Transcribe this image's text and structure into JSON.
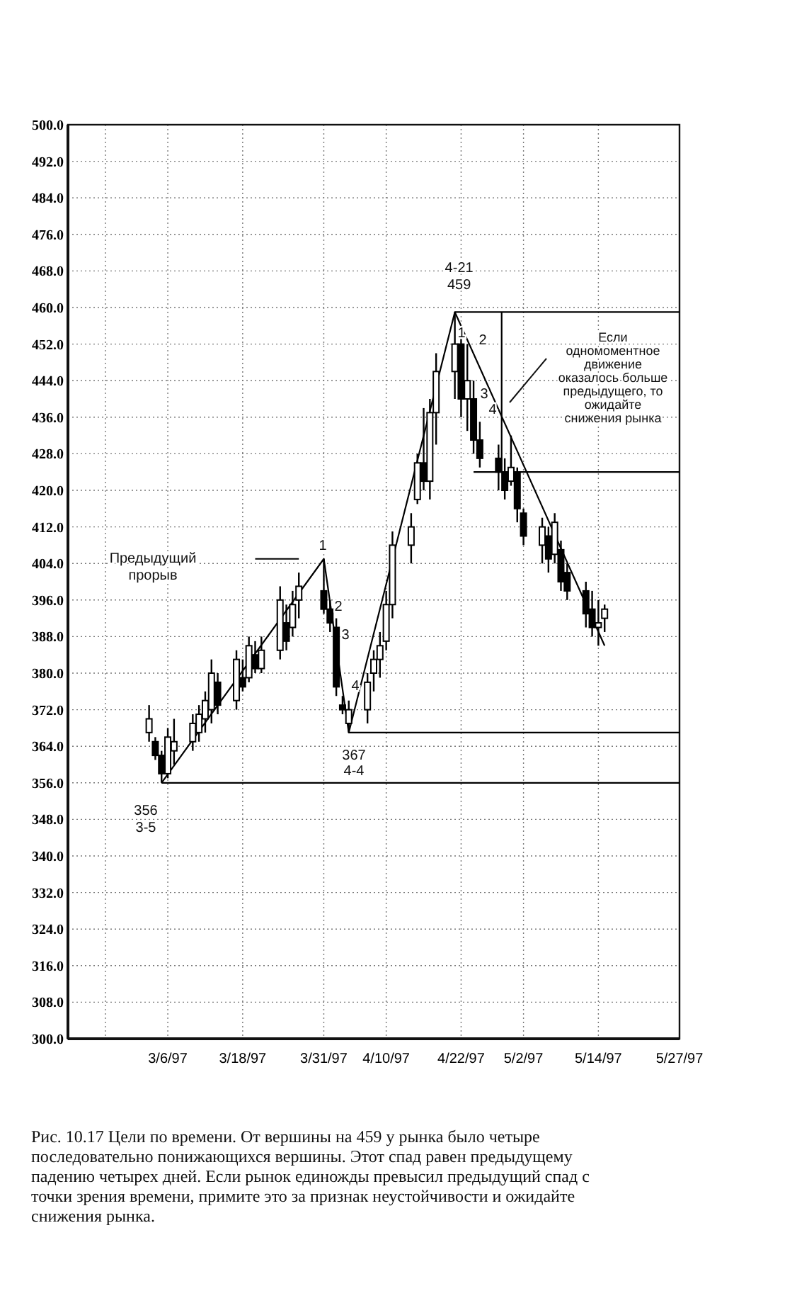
{
  "chart_data": {
    "type": "candlestick",
    "color": "#000000",
    "x": [
      "1997-03-03",
      "1997-03-04",
      "1997-03-05",
      "1997-03-06",
      "1997-03-07",
      "1997-03-10",
      "1997-03-11",
      "1997-03-12",
      "1997-03-13",
      "1997-03-14",
      "1997-03-17",
      "1997-03-18",
      "1997-03-19",
      "1997-03-20",
      "1997-03-21",
      "1997-03-24",
      "1997-03-25",
      "1997-03-26",
      "1997-03-27",
      "1997-03-31",
      "1997-04-01",
      "1997-04-02",
      "1997-04-03",
      "1997-04-04",
      "1997-04-07",
      "1997-04-08",
      "1997-04-09",
      "1997-04-10",
      "1997-04-11",
      "1997-04-14",
      "1997-04-15",
      "1997-04-16",
      "1997-04-17",
      "1997-04-18",
      "1997-04-21",
      "1997-04-22",
      "1997-04-23",
      "1997-04-24",
      "1997-04-25",
      "1997-04-28",
      "1997-04-29",
      "1997-04-30",
      "1997-05-01",
      "1997-05-02",
      "1997-05-05",
      "1997-05-06",
      "1997-05-07",
      "1997-05-08",
      "1997-05-09",
      "1997-05-12",
      "1997-05-13",
      "1997-05-14",
      "1997-05-15"
    ],
    "ohlc": [
      [
        367,
        373,
        365,
        370
      ],
      [
        365,
        366,
        361,
        362
      ],
      [
        362,
        363,
        356,
        358
      ],
      [
        358,
        368,
        357,
        366
      ],
      [
        363,
        370,
        360,
        365
      ],
      [
        365,
        371,
        363,
        369
      ],
      [
        367,
        373,
        365,
        371
      ],
      [
        370,
        376,
        367,
        374
      ],
      [
        372,
        383,
        369,
        380
      ],
      [
        378,
        380,
        371,
        373
      ],
      [
        374,
        385,
        372,
        383
      ],
      [
        379,
        383,
        376,
        377
      ],
      [
        379,
        388,
        378,
        386
      ],
      [
        384,
        387,
        380,
        381
      ],
      [
        381,
        388,
        380,
        385
      ],
      [
        385,
        399,
        383,
        396
      ],
      [
        391,
        395,
        385,
        387
      ],
      [
        390,
        398,
        388,
        395
      ],
      [
        396,
        402,
        392,
        399
      ],
      [
        398,
        405,
        393,
        394
      ],
      [
        394,
        396,
        389,
        391
      ],
      [
        390,
        392,
        375,
        377
      ],
      [
        373,
        375,
        371,
        372
      ],
      [
        369,
        374,
        367,
        372
      ],
      [
        372,
        380,
        369,
        378
      ],
      [
        380,
        385,
        376,
        383
      ],
      [
        383,
        389,
        379,
        386
      ],
      [
        387,
        398,
        385,
        395
      ],
      [
        395,
        411,
        392,
        408
      ],
      [
        408,
        415,
        404,
        412
      ],
      [
        418,
        428,
        417,
        426
      ],
      [
        426,
        438,
        420,
        422
      ],
      [
        422,
        440,
        418,
        437
      ],
      [
        437,
        450,
        430,
        446
      ],
      [
        446,
        459,
        440,
        452
      ],
      [
        452,
        456,
        436,
        440
      ],
      [
        440,
        452,
        433,
        444
      ],
      [
        440,
        444,
        428,
        431
      ],
      [
        431,
        435,
        425,
        427
      ],
      [
        427,
        430,
        420,
        424
      ],
      [
        424,
        427,
        418,
        420
      ],
      [
        422,
        432,
        421,
        425
      ],
      [
        424,
        425,
        413,
        416
      ],
      [
        415,
        416,
        408,
        410
      ],
      [
        408,
        414,
        404,
        412
      ],
      [
        410,
        412,
        402,
        405
      ],
      [
        406,
        415,
        404,
        413
      ],
      [
        407,
        409,
        398,
        400
      ],
      [
        402,
        404,
        396,
        398
      ],
      [
        398,
        400,
        390,
        393
      ],
      [
        394,
        398,
        388,
        390
      ],
      [
        390,
        396,
        386,
        391
      ],
      [
        392,
        395,
        389,
        394
      ]
    ],
    "series": [
      {
        "type": "line",
        "color": "#000000",
        "x": [
          "1997-03-05",
          "1997-03-31",
          "1997-04-04",
          "1997-04-21",
          "1997-05-15"
        ],
        "values": [
          356,
          405,
          367,
          459,
          386
        ]
      },
      {
        "type": "line",
        "color": "#000000",
        "x": [
          "1997-03-05",
          "1997-05-27"
        ],
        "values": [
          356,
          356
        ]
      },
      {
        "type": "line",
        "color": "#000000",
        "x": [
          "1997-04-04",
          "1997-05-27"
        ],
        "values": [
          367,
          367
        ]
      },
      {
        "type": "line",
        "color": "#000000",
        "x": [
          "1997-04-21",
          "1997-05-27"
        ],
        "values": [
          459,
          459
        ]
      },
      {
        "type": "line",
        "color": "#000000",
        "x": [
          "1997-04-24",
          "1997-05-27"
        ],
        "values": [
          424,
          424
        ]
      },
      {
        "type": "line",
        "color": "#000000",
        "x": [
          "1997-04-28T12:00",
          "1997-04-28T12:00"
        ],
        "values": [
          459,
          424
        ]
      },
      {
        "type": "line",
        "color": "#000000",
        "x": [
          "1997-03-20",
          "1997-03-27"
        ],
        "values": [
          405,
          405
        ]
      }
    ],
    "xlim": [
      "1997-02-18",
      "1997-05-27"
    ],
    "xticks": [
      {
        "value": "1997-02-24",
        "label": null
      },
      {
        "value": "1997-03-06",
        "label": "3/6/97"
      },
      {
        "value": "1997-03-18",
        "label": "3/18/97"
      },
      {
        "value": "1997-03-31",
        "label": "3/31/97"
      },
      {
        "value": "1997-04-10",
        "label": "4/10/97"
      },
      {
        "value": "1997-04-22",
        "label": "4/22/97"
      },
      {
        "value": "1997-05-02",
        "label": "5/2/97"
      },
      {
        "value": "1997-05-14",
        "label": "5/14/97"
      },
      {
        "value": "1997-05-27",
        "label": "5/27/97"
      }
    ],
    "ylim": [
      300,
      500
    ],
    "yticks": [
      {
        "value": 300,
        "label": "300.0"
      },
      {
        "value": 308,
        "label": "308.0"
      },
      {
        "value": 316,
        "label": "316.0"
      },
      {
        "value": 324,
        "label": "324.0"
      },
      {
        "value": 332,
        "label": "332.0"
      },
      {
        "value": 340,
        "label": "340.0"
      },
      {
        "value": 348,
        "label": "348.0"
      },
      {
        "value": 356,
        "label": "356.0"
      },
      {
        "value": 364,
        "label": "364.0"
      },
      {
        "value": 372,
        "label": "372.0"
      },
      {
        "value": 380,
        "label": "380.0"
      },
      {
        "value": 388,
        "label": "388.0"
      },
      {
        "value": 396,
        "label": "396.0"
      },
      {
        "value": 404,
        "label": "404.0"
      },
      {
        "value": 412,
        "label": "412.0"
      },
      {
        "value": 420,
        "label": "420.0"
      },
      {
        "value": 428,
        "label": "428.0"
      },
      {
        "value": 436,
        "label": "436.0"
      },
      {
        "value": 444,
        "label": "444.0"
      },
      {
        "value": 452,
        "label": "452.0"
      },
      {
        "value": 460,
        "label": "460.0"
      },
      {
        "value": 468,
        "label": "468.0"
      },
      {
        "value": 476,
        "label": "476.0"
      },
      {
        "value": 484,
        "label": "484.0"
      },
      {
        "value": 492,
        "label": "492.0"
      },
      {
        "value": 500,
        "label": "500.0"
      }
    ],
    "grid": true,
    "annotations": [
      "Предыдущий\nпрорыв",
      "1",
      "2",
      "3",
      "4",
      "367\n4-4",
      "356\n3-5",
      {
        "text": "4-21\n459",
        "x": "1997-04-21",
        "y": 459
      },
      "1",
      "2",
      "3",
      "4",
      "Если\nодномоментное\nдвижение\nоказалось больше\nпредыдущего, то\nожидайте\nснижения рынка",
      "Рис. 10.17    Цели по времени. От вершины на 459 у рынка было четыре\nпоследовательно понижающихся вершины. Этот спад равен предыдущему\nпадению четырех дней. Если рынок единожды превысил предыдущий спад с\nточки зрения времени, примите это за признак неустойчивости и ожидайте\nснижения рынка."
    ]
  }
}
